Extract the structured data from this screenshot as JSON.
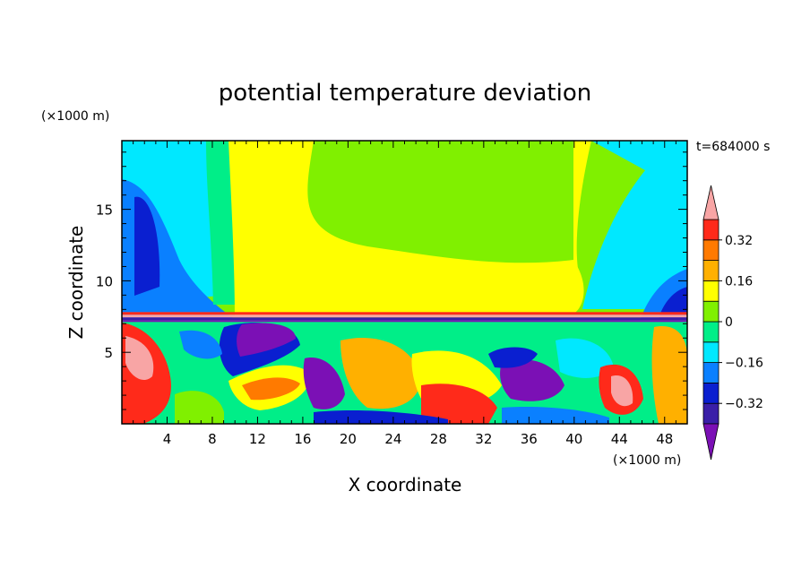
{
  "chart_data": {
    "type": "heatmap",
    "title": "potential temperature deviation",
    "xlabel": "X coordinate",
    "ylabel": "Z coordinate",
    "x_unit": "(×1000 m)",
    "z_unit": "(×1000 m)",
    "time_label": "t=684000 s",
    "x_ticks": [
      4,
      8,
      12,
      16,
      20,
      24,
      28,
      32,
      36,
      40,
      44,
      48
    ],
    "z_ticks": [
      5,
      10,
      15
    ],
    "xlim": [
      0,
      50
    ],
    "zlim": [
      0,
      19.8
    ],
    "colorbar": {
      "levels": [
        -0.4,
        -0.32,
        -0.24,
        -0.16,
        -0.08,
        0,
        0.08,
        0.16,
        0.24,
        0.32,
        0.4
      ],
      "tick_labels": [
        "0.32",
        "0.16",
        "0",
        "−0.16",
        "−0.32"
      ],
      "tick_values": [
        0.32,
        0.16,
        0,
        -0.16,
        -0.32
      ],
      "colors": [
        "#7b10b5",
        "#3a1fa8",
        "#0a1fd0",
        "#0a80ff",
        "#00e8ff",
        "#00ee88",
        "#80f000",
        "#ffff00",
        "#ffb000",
        "#ff7a00",
        "#ff2a1a",
        "#f8a5a5"
      ],
      "extend": "both"
    },
    "field_description_points": [
      {
        "x": 1.5,
        "z": 17,
        "v": -0.1
      },
      {
        "x": 2.5,
        "z": 12.5,
        "v": -0.3
      },
      {
        "x": 6,
        "z": 15,
        "v": -0.14
      },
      {
        "x": 9.5,
        "z": 16,
        "v": 0.04
      },
      {
        "x": 13.5,
        "z": 16,
        "v": 0.12
      },
      {
        "x": 24,
        "z": 17,
        "v": 0.05
      },
      {
        "x": 28,
        "z": 13.5,
        "v": 0.02
      },
      {
        "x": 24,
        "z": 9.5,
        "v": 0.13
      },
      {
        "x": 42,
        "z": 14,
        "v": 0.03
      },
      {
        "x": 46,
        "z": 12,
        "v": -0.1
      },
      {
        "x": 49,
        "z": 8.5,
        "v": -0.3
      },
      {
        "x": 1.5,
        "z": 5,
        "v": 0.42
      },
      {
        "x": 4,
        "z": 2.5,
        "v": 0.3
      },
      {
        "x": 14,
        "z": 6.2,
        "v": -0.35
      },
      {
        "x": 18,
        "z": 5.2,
        "v": -0.3
      },
      {
        "x": 13,
        "z": 3.5,
        "v": 0.28
      },
      {
        "x": 21,
        "z": 2,
        "v": -0.08
      },
      {
        "x": 26,
        "z": 4.5,
        "v": 0.25
      },
      {
        "x": 30,
        "z": 1.2,
        "v": 0.42
      },
      {
        "x": 33.5,
        "z": 3.5,
        "v": 0.18
      },
      {
        "x": 38,
        "z": 3.5,
        "v": -0.36
      },
      {
        "x": 44,
        "z": 2.5,
        "v": 0.4
      },
      {
        "x": 48,
        "z": 5.5,
        "v": 0.25
      }
    ]
  }
}
